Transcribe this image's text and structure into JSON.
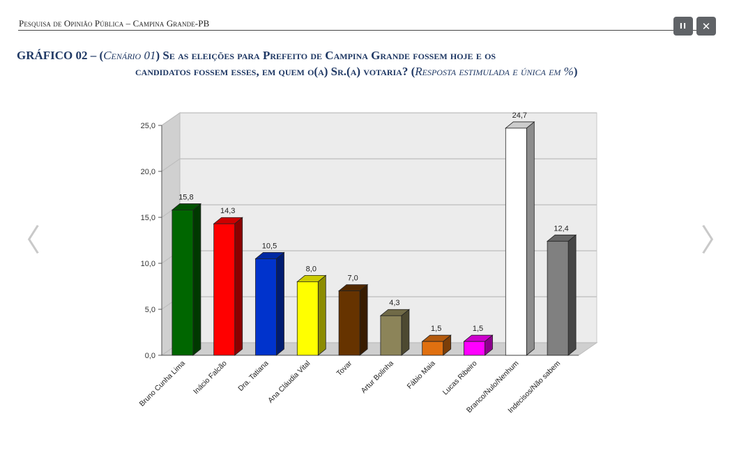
{
  "header": {
    "text": "Pesquisa de Opinião Pública – Campina Grande-PB"
  },
  "controls": {
    "pause": "II",
    "close": "✕",
    "prev": "〈",
    "next": "〉"
  },
  "title": {
    "prefix": "GRÁFICO 02 – (",
    "scenario": "Cenário 01",
    "question_start": ") Se as eleições para Prefeito de Campina Grande fossem hoje e os",
    "question_end": "candidatos fossem esses, em quem o(a) Sr.(a) votaria? (",
    "note": "Resposta estimulada e única em %",
    "close": ")"
  },
  "chart_data": {
    "type": "bar",
    "categories": [
      "Bruno Cunha Lima",
      "Inácio Falcão",
      "Dra. Tatiana",
      "Ana Cláudia Vital",
      "Tovar",
      "Artur Bolinha",
      "Fábio Maia",
      "Lucas Ribeiro",
      "Branco/Nulo/Nenhum",
      "Indecisos/Não sabem"
    ],
    "values": [
      15.8,
      14.3,
      10.5,
      8.0,
      7.0,
      4.3,
      1.5,
      1.5,
      24.7,
      12.4
    ],
    "value_labels": [
      "15,8",
      "14,3",
      "10,5",
      "8,0",
      "7,0",
      "4,3",
      "1,5",
      "1,5",
      "24,7",
      "12,4"
    ],
    "colors": [
      "#006600",
      "#ff0000",
      "#0033cc",
      "#ffff00",
      "#663300",
      "#8c8459",
      "#e07010",
      "#ff00ff",
      "#ffffff",
      "#808080"
    ],
    "yticks": [
      "0,0",
      "5,0",
      "10,0",
      "15,0",
      "20,0",
      "25,0"
    ],
    "ylim": [
      0,
      25
    ],
    "grid": true,
    "style": "3d-column"
  }
}
